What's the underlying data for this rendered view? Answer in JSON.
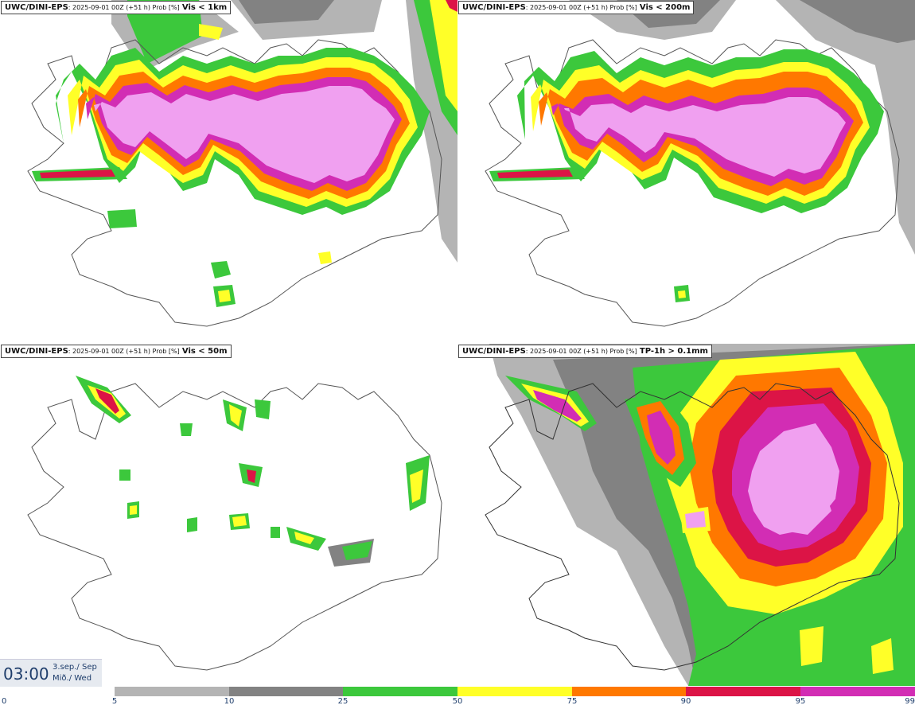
{
  "panels": [
    {
      "model": "UWC/DINI-EPS",
      "meta": ": 2025-09-01 00Z (+51 h) Prob [%]",
      "threshold": "Vis < 1km"
    },
    {
      "model": "UWC/DINI-EPS",
      "meta": ": 2025-09-01 00Z (+51 h) Prob [%]",
      "threshold": "Vis < 200m"
    },
    {
      "model": "UWC/DINI-EPS",
      "meta": ": 2025-09-01 00Z (+51 h) Prob [%]",
      "threshold": "Vis < 50m"
    },
    {
      "model": "UWC/DINI-EPS",
      "meta": ": 2025-09-01 00Z (+51 h) Prob [%]",
      "threshold": "TP-1h > 0.1mm"
    }
  ],
  "time": {
    "clock": "03:00",
    "date_line1": "3.sep./ Sep",
    "date_line2": "Mið./ Wed"
  },
  "colorbar": {
    "ticks": [
      "0",
      "5",
      "10",
      "25",
      "50",
      "75",
      "90",
      "95",
      "99"
    ],
    "colors": [
      "#ffffff",
      "#b4b4b4",
      "#828282",
      "#3cc83c",
      "#ffff28",
      "#ff7800",
      "#dc1446",
      "#d22db4",
      "#f0a0f0"
    ]
  }
}
